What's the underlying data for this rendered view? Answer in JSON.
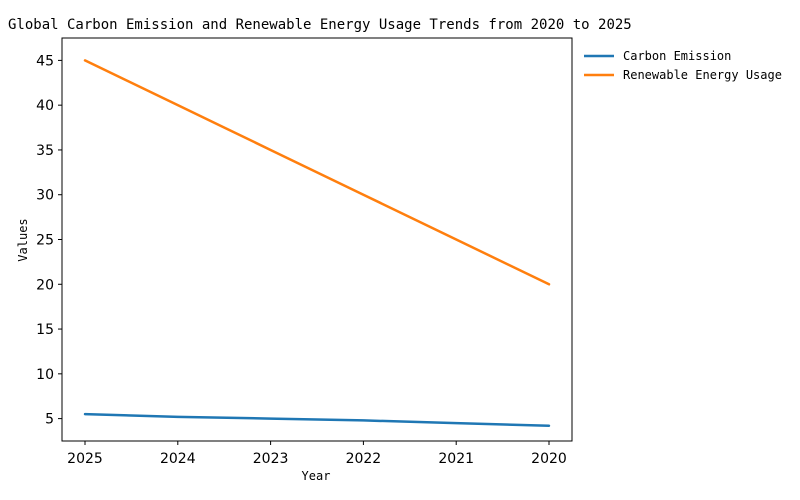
{
  "chart_data": {
    "type": "line",
    "title": "Global Carbon Emission and Renewable Energy Usage Trends from 2020 to 2025",
    "xlabel": "Year",
    "ylabel": "Values",
    "x": [
      "2025",
      "2024",
      "2023",
      "2022",
      "2021",
      "2020"
    ],
    "ylim": [
      2.5,
      47.5
    ],
    "yticks": [
      5,
      10,
      15,
      20,
      25,
      30,
      35,
      40,
      45
    ],
    "grid": false,
    "legend_position": "outside-top-right",
    "series": [
      {
        "name": "Carbon Emission",
        "color": "#1f77b4",
        "values": [
          5.5,
          5.2,
          5.0,
          4.8,
          4.5,
          4.2
        ]
      },
      {
        "name": "Renewable Energy Usage",
        "color": "#ff7f0e",
        "values": [
          45,
          40,
          35,
          30,
          25,
          20
        ]
      }
    ]
  }
}
